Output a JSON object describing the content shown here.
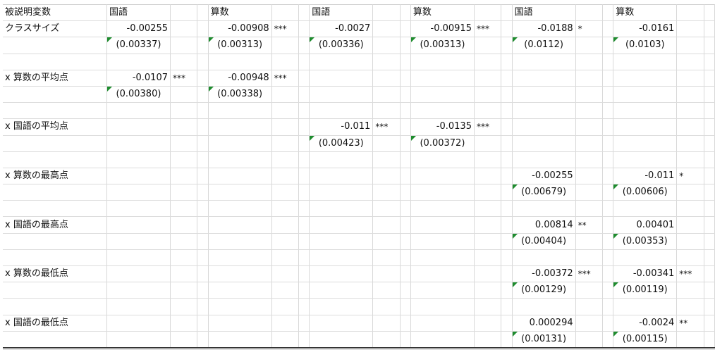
{
  "columns": [
    {
      "header": "国語"
    },
    {
      "header": "算数"
    },
    {
      "header": "国語"
    },
    {
      "header": "算数"
    },
    {
      "header": "国語"
    },
    {
      "header": "算数"
    }
  ],
  "header_label": "被説明変数",
  "rows": [
    {
      "label": "クラスサイズ",
      "cells": [
        {
          "coef": "-0.00255",
          "stars": "",
          "se": "(0.00337)"
        },
        {
          "coef": "-0.00908",
          "stars": "***",
          "se": "(0.00313)"
        },
        {
          "coef": "-0.0027",
          "stars": "",
          "se": "(0.00336)"
        },
        {
          "coef": "-0.00915",
          "stars": "***",
          "se": "(0.00313)"
        },
        {
          "coef": "-0.0188",
          "stars": "*",
          "se": "(0.0112)"
        },
        {
          "coef": "-0.0161",
          "stars": "",
          "se": "(0.0103)"
        }
      ]
    },
    {
      "label": "x 算数の平均点",
      "cells": [
        {
          "coef": "-0.0107",
          "stars": "***",
          "se": "(0.00380)"
        },
        {
          "coef": "-0.00948",
          "stars": "***",
          "se": "(0.00338)"
        },
        null,
        null,
        null,
        null
      ]
    },
    {
      "label": "x 国語の平均点",
      "cells": [
        null,
        null,
        {
          "coef": "-0.011",
          "stars": "***",
          "se": "(0.00423)"
        },
        {
          "coef": "-0.0135",
          "stars": "***",
          "se": "(0.00372)"
        },
        null,
        null
      ]
    },
    {
      "label": "x 算数の最高点",
      "cells": [
        null,
        null,
        null,
        null,
        {
          "coef": "-0.00255",
          "stars": "",
          "se": "(0.00679)"
        },
        {
          "coef": "-0.011",
          "stars": "*",
          "se": "(0.00606)"
        }
      ]
    },
    {
      "label": "x 国語の最高点",
      "cells": [
        null,
        null,
        null,
        null,
        {
          "coef": "0.00814",
          "stars": "**",
          "se": "(0.00404)"
        },
        {
          "coef": "0.00401",
          "stars": "",
          "se": "(0.00353)"
        }
      ]
    },
    {
      "label": "x 算数の最低点",
      "cells": [
        null,
        null,
        null,
        null,
        {
          "coef": "-0.00372",
          "stars": "***",
          "se": "(0.00129)"
        },
        {
          "coef": "-0.00341",
          "stars": "***",
          "se": "(0.00119)"
        }
      ]
    },
    {
      "label": "x 国語の最低点",
      "cells": [
        null,
        null,
        null,
        null,
        {
          "coef": "0.000294",
          "stars": "",
          "se": "(0.00131)"
        },
        {
          "coef": "-0.0024",
          "stars": "**",
          "se": "(0.00115)"
        }
      ]
    }
  ],
  "colors": {
    "flag": "#1e8c2e",
    "grid": "#d8d8d8",
    "rule": "#333333"
  }
}
